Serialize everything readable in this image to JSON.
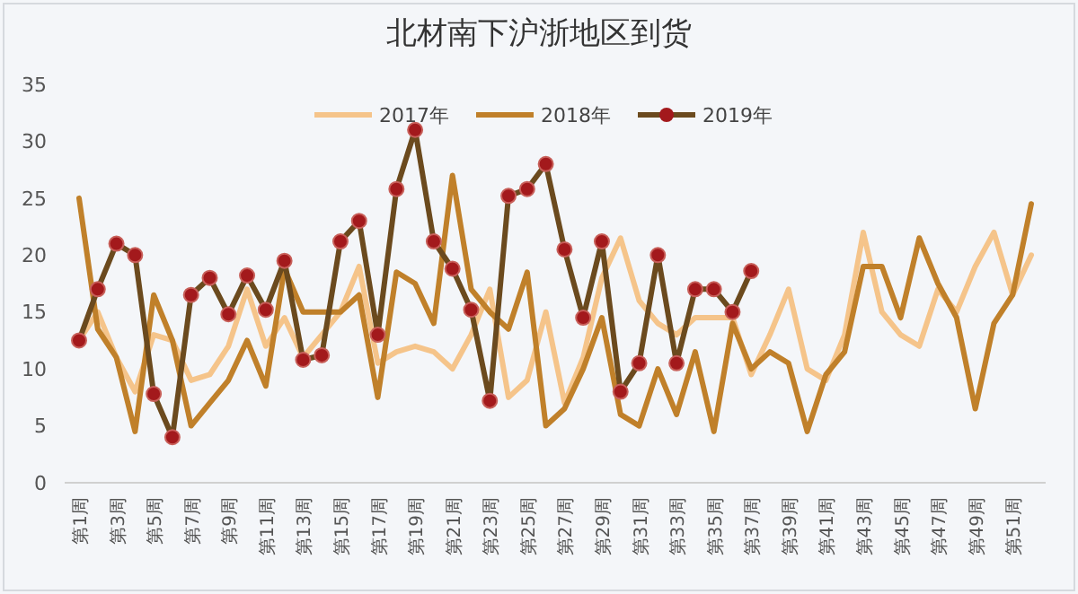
{
  "chart_data": {
    "type": "line",
    "title": "北材南下沪浙地区到货",
    "categories": [
      "第1周",
      null,
      "第3周",
      null,
      "第5周",
      null,
      "第7周",
      null,
      "第9周",
      null,
      "第11周",
      null,
      "第13周",
      null,
      "第15周",
      null,
      "第17周",
      null,
      "第19周",
      null,
      "第21周",
      null,
      "第23周",
      null,
      "第25周",
      null,
      "第27周",
      null,
      "第29周",
      null,
      "第31周",
      null,
      "第33周",
      null,
      "第35周",
      null,
      "第37周",
      null,
      "第39周",
      null,
      "第41周",
      null,
      "第43周",
      null,
      "第45周",
      null,
      "第47周",
      null,
      "第49周",
      null,
      "第51周",
      null
    ],
    "series": [
      {
        "name": "2017年",
        "color": "#f5c48a",
        "marker": "none",
        "values": [
          12.5,
          15,
          11,
          8,
          13,
          12.5,
          9,
          9.5,
          12,
          17,
          12,
          14.5,
          11,
          13,
          15,
          19,
          10.5,
          11.5,
          12,
          11.5,
          10,
          13,
          17,
          7.5,
          9,
          15,
          7,
          11,
          18,
          21.5,
          16,
          14,
          13,
          14.5,
          14.5,
          14.5,
          9.5,
          13,
          17,
          10,
          9,
          13,
          22,
          15,
          13,
          12,
          17,
          15,
          19,
          22,
          16.5,
          20
        ]
      },
      {
        "name": "2018年",
        "color": "#c0802a",
        "marker": "none",
        "values": [
          25,
          13.5,
          11,
          4.5,
          16.5,
          12.5,
          5,
          7,
          9,
          12.5,
          8.5,
          18.8,
          15,
          15,
          15,
          16.5,
          7.5,
          18.5,
          17.5,
          14,
          27,
          17,
          15,
          13.5,
          18.5,
          5,
          6.5,
          10,
          14.5,
          6,
          5,
          10,
          6,
          11.5,
          4.5,
          14,
          10,
          11.5,
          10.5,
          4.5,
          9.5,
          11.5,
          19,
          19,
          14.5,
          21.5,
          17.5,
          14.5,
          6.5,
          14,
          16.5,
          24.5
        ]
      },
      {
        "name": "2019年",
        "color": "#6b4a1e",
        "marker": "circle",
        "values": [
          12.5,
          17,
          21,
          20,
          7.8,
          4,
          16.5,
          18,
          14.8,
          18.2,
          15.2,
          19.5,
          10.8,
          11.2,
          21.2,
          23,
          13,
          25.8,
          31,
          21.2,
          18.8,
          15.2,
          7.2,
          25.2,
          25.8,
          28,
          20.5,
          14.5,
          21.2,
          8,
          10.5,
          20,
          10.5,
          17,
          17,
          15,
          18.6,
          null,
          null,
          null,
          null,
          null,
          null,
          null,
          null,
          null,
          null,
          null,
          null,
          null,
          null,
          null
        ]
      }
    ],
    "ylim": [
      0,
      35
    ],
    "yticks": [
      0,
      5,
      10,
      15,
      20,
      25,
      30,
      35
    ],
    "legend": "top"
  }
}
